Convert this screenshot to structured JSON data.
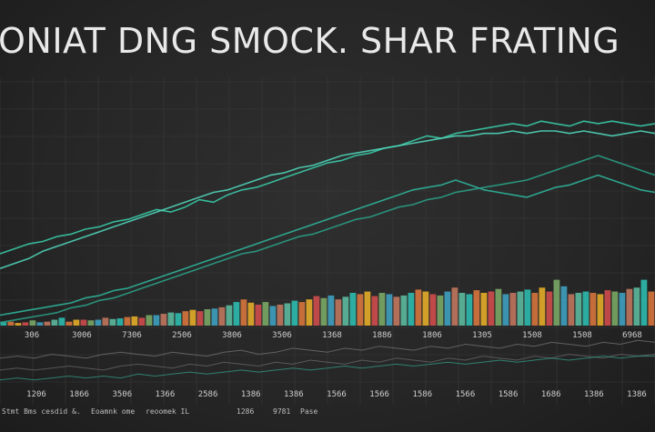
{
  "chart_data": {
    "type": "bar",
    "title": "ONIAT DNG SMOCK. SHAR FRATING",
    "grid": true,
    "legend": "none",
    "categories": [],
    "tick_labels_row1": [
      "306",
      "3006",
      "7306",
      "2506",
      "3806",
      "3506",
      "1368",
      "1886",
      "1806",
      "1305",
      "1508",
      "1508",
      "6968"
    ],
    "tick_labels_row2": [
      "1206",
      "1866",
      "3506",
      "1366",
      "2586",
      "1386",
      "1386",
      "1566",
      "1566",
      "1586",
      "1566",
      "1586",
      "1686",
      "1386",
      "1386"
    ],
    "footer_text": [
      "Stmt Bms cesdid &.",
      "Eoamnk ome",
      "reoomek IL",
      "1286",
      "9781",
      "Pase"
    ],
    "bars": [
      5,
      6,
      4,
      5,
      8,
      5,
      6,
      9,
      12,
      6,
      9,
      9,
      8,
      9,
      12,
      10,
      11,
      13,
      14,
      12,
      16,
      16,
      18,
      20,
      19,
      22,
      24,
      22,
      25,
      26,
      28,
      31,
      36,
      40,
      35,
      32,
      36,
      30,
      32,
      34,
      38,
      36,
      40,
      45,
      42,
      46,
      40,
      44,
      50,
      48,
      52,
      45,
      50,
      48,
      44,
      46,
      50,
      55,
      52,
      48,
      46,
      52,
      58,
      50,
      48,
      54,
      50,
      52,
      56,
      48,
      50,
      52,
      55,
      50,
      58,
      52,
      70,
      60,
      48,
      50,
      52,
      50,
      48,
      54,
      52,
      50,
      56,
      58,
      70,
      52
    ],
    "bar_colors": [
      "#2ec4b6",
      "#e07a3f",
      "#f0b429",
      "#d94f4f",
      "#7fb069",
      "#3fa7c9",
      "#c97b63",
      "#5fc2a5"
    ],
    "line_series": [
      {
        "color": "#39c9a6",
        "values": [
          30,
          32,
          34,
          35,
          37,
          38,
          40,
          41,
          43,
          44,
          46,
          48,
          47,
          49,
          52,
          51,
          54,
          56,
          57,
          59,
          61,
          63,
          65,
          67,
          68,
          70,
          71,
          73,
          74,
          76,
          78,
          77,
          79,
          80,
          81,
          82,
          83,
          82,
          84,
          83,
          82,
          84,
          83,
          84,
          83,
          82,
          83
        ]
      },
      {
        "color": "#4fd3b8",
        "values": [
          24,
          26,
          28,
          31,
          33,
          35,
          37,
          39,
          41,
          43,
          45,
          47,
          49,
          51,
          53,
          55,
          56,
          58,
          60,
          62,
          63,
          65,
          66,
          68,
          70,
          71,
          72,
          73,
          74,
          75,
          76,
          77,
          78,
          78,
          79,
          79,
          80,
          79,
          80,
          80,
          79,
          80,
          79,
          78,
          79,
          80,
          79
        ]
      },
      {
        "color": "#2fb39a",
        "values": [
          5,
          6,
          7,
          8,
          9,
          10,
          12,
          13,
          15,
          16,
          18,
          20,
          22,
          24,
          26,
          28,
          30,
          32,
          34,
          36,
          38,
          40,
          42,
          44,
          46,
          48,
          50,
          52,
          54,
          56,
          57,
          58,
          60,
          58,
          56,
          55,
          54,
          53,
          55,
          57,
          58,
          60,
          62,
          60,
          58,
          56,
          55
        ]
      },
      {
        "color": "#2a9d85",
        "values": [
          2,
          3,
          4,
          5,
          6,
          8,
          9,
          11,
          12,
          14,
          16,
          18,
          20,
          22,
          24,
          26,
          28,
          30,
          31,
          33,
          35,
          37,
          38,
          40,
          42,
          44,
          45,
          47,
          49,
          50,
          52,
          53,
          55,
          56,
          57,
          58,
          59,
          60,
          62,
          64,
          66,
          68,
          70,
          68,
          66,
          64,
          62
        ]
      }
    ],
    "lower_series": [
      {
        "color": "#7a7a7a",
        "values": [
          12,
          13,
          12,
          14,
          13,
          12,
          14,
          15,
          14,
          13,
          15,
          14,
          13,
          15,
          16,
          14,
          15,
          17,
          16,
          15,
          17,
          16,
          18,
          17,
          16,
          18,
          17,
          19,
          18,
          17,
          19,
          18,
          20,
          19,
          18,
          20,
          19,
          21,
          20
        ]
      },
      {
        "color": "#6e6e6e",
        "values": [
          6,
          7,
          6,
          7,
          8,
          7,
          6,
          8,
          9,
          8,
          7,
          9,
          8,
          10,
          9,
          8,
          10,
          9,
          11,
          10,
          9,
          11,
          10,
          12,
          11,
          10,
          12,
          11,
          13,
          12,
          11,
          13,
          12,
          14,
          13,
          12,
          14,
          13,
          14
        ]
      },
      {
        "color": "#35a88e",
        "values": [
          1,
          2,
          1,
          2,
          3,
          2,
          3,
          2,
          4,
          3,
          4,
          5,
          4,
          5,
          6,
          5,
          6,
          7,
          6,
          7,
          8,
          7,
          8,
          9,
          8,
          9,
          10,
          9,
          10,
          11,
          10,
          11,
          12,
          11,
          12,
          13,
          12,
          13,
          13
        ]
      }
    ]
  }
}
